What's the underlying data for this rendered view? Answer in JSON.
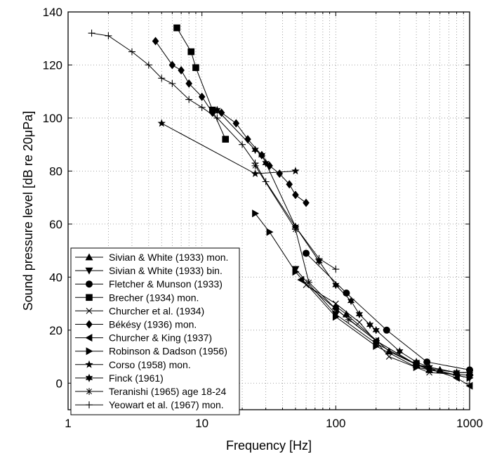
{
  "chart_data": {
    "type": "line",
    "title": "",
    "xlabel": "Frequency [Hz]",
    "ylabel": "Sound pressure level [dB re 20μPa]",
    "xscale": "log",
    "xlim": [
      1,
      1000
    ],
    "ylim": [
      -10,
      140
    ],
    "x_ticks": [
      1,
      10,
      100,
      1000
    ],
    "x_tick_labels": [
      "1",
      "10",
      "100",
      "1000"
    ],
    "y_ticks": [
      0,
      20,
      40,
      60,
      80,
      100,
      120,
      140
    ],
    "y_tick_labels": [
      "0",
      "20",
      "40",
      "60",
      "80",
      "100",
      "120",
      "140"
    ],
    "grid": true,
    "legend_position": "bottom-left",
    "series": [
      {
        "name": "Sivian & White (1933) mon.",
        "marker": "triangle-up",
        "x": [
          100,
          120,
          250,
          400,
          500,
          600,
          800,
          1000
        ],
        "y": [
          29,
          26,
          12,
          7,
          5,
          5,
          4,
          4
        ]
      },
      {
        "name": "Sivian & White (1933) bin.",
        "marker": "triangle-down",
        "x": [
          50,
          100,
          200,
          400,
          800,
          1000
        ],
        "y": [
          43,
          26,
          15,
          7,
          3,
          2
        ]
      },
      {
        "name": "Fletcher & Munson (1933)",
        "marker": "circle",
        "x": [
          60,
          120,
          240,
          480,
          1000
        ],
        "y": [
          49,
          34,
          20,
          8,
          5
        ]
      },
      {
        "name": "Brecher (1934) mon.",
        "marker": "square",
        "x": [
          6.5,
          8.3,
          9.0,
          12,
          15
        ],
        "y": [
          134,
          125,
          119,
          103,
          92
        ]
      },
      {
        "name": "Churcher et al. (1934)",
        "marker": "x",
        "x": [
          60,
          100,
          150,
          250,
          500,
          1000
        ],
        "y": [
          37,
          30,
          23,
          10,
          4,
          3
        ]
      },
      {
        "name": "Békésy (1936) mon.",
        "marker": "diamond",
        "x": [
          4.5,
          6,
          7,
          8,
          10,
          12,
          14,
          18,
          22,
          28,
          32,
          38,
          45,
          50,
          60
        ],
        "y": [
          129,
          120,
          118,
          113,
          108,
          102,
          102,
          98,
          92,
          86,
          82,
          79,
          75,
          71,
          68
        ]
      },
      {
        "name": "Churcher & King (1937)",
        "marker": "triangle-left",
        "x": [
          55,
          100,
          200,
          400,
          800,
          1000
        ],
        "y": [
          39,
          28,
          16,
          7,
          2,
          -1
        ]
      },
      {
        "name": "Robinson & Dadson (1956)",
        "marker": "triangle-right",
        "x": [
          25,
          32,
          50,
          100,
          200,
          400,
          1000
        ],
        "y": [
          64,
          57,
          42,
          25,
          14,
          6,
          2
        ]
      },
      {
        "name": "Corso (1958) mon.",
        "marker": "star",
        "x": [
          5,
          25,
          50
        ],
        "y": [
          98,
          79,
          80
        ]
      },
      {
        "name": "Finck (1961)",
        "marker": "hexagram",
        "x": [
          13,
          25,
          28,
          30,
          50,
          75,
          100,
          130,
          150,
          180,
          200,
          300,
          400,
          500,
          800,
          1000
        ],
        "y": [
          103,
          88,
          86,
          83,
          59,
          46,
          37,
          31,
          26,
          22,
          20,
          12,
          8,
          6,
          4,
          4
        ]
      },
      {
        "name": "Teranishi (1965) age 18-24",
        "marker": "asterisk",
        "x": [
          25,
          50,
          63,
          100,
          125,
          200,
          400,
          800,
          1000
        ],
        "y": [
          82,
          58,
          38,
          28,
          24,
          16,
          7,
          4,
          4
        ]
      },
      {
        "name": "Yeowart et al. (1967) mon.",
        "marker": "plus",
        "x": [
          1.5,
          2,
          3,
          4,
          5,
          6,
          8,
          10,
          13,
          20,
          25,
          30,
          50,
          75,
          100
        ],
        "y": [
          132,
          131,
          125,
          120,
          115,
          113,
          107,
          104,
          100,
          90,
          83,
          76,
          59,
          47,
          43
        ]
      }
    ]
  }
}
